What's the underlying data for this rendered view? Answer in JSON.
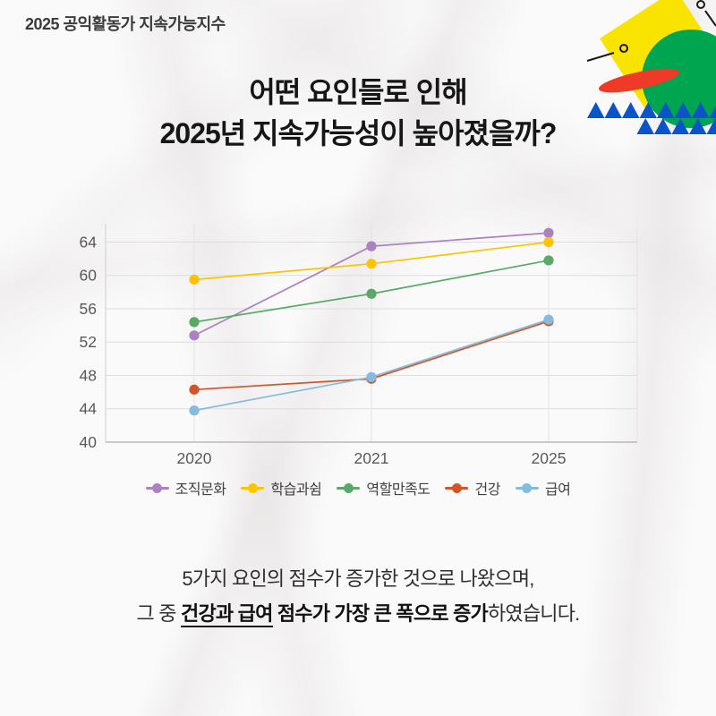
{
  "header": {
    "label": "2025 공익활동가 지속가능지수"
  },
  "title": {
    "line1": "어떤 요인들로 인해",
    "line2": "2025년 지속가능성이 높아졌을까?"
  },
  "footer": {
    "line1": "5가지 요인의 점수가 증가한 것으로 나왔으며,",
    "line2_prefix": "그 중 ",
    "line2_underline_bold": "건강과 급여",
    "line2_bold": " 점수가 가장 큰 폭으로 증가",
    "line2_suffix": "하였습니다."
  },
  "colors": {
    "deco_yellow": "#f9e300",
    "deco_green": "#00a550",
    "deco_red": "#ee3a26",
    "deco_blue": "#0b53c8",
    "pin_black": "#1a1a1a",
    "gridline": "#dedede",
    "axis": "#b9b9b9",
    "tick_text": "#595959"
  },
  "chart_data": {
    "type": "line",
    "categories": [
      "2020",
      "2021",
      "2025"
    ],
    "series": [
      {
        "name": "조직문화",
        "color": "#ab82c0",
        "values": [
          52.8,
          63.5,
          65.1
        ]
      },
      {
        "name": "학습과쉼",
        "color": "#fcc403",
        "values": [
          59.5,
          61.4,
          64.0
        ]
      },
      {
        "name": "역할만족도",
        "color": "#5ba968",
        "values": [
          54.4,
          57.8,
          61.8
        ]
      },
      {
        "name": "건강",
        "color": "#d2542a",
        "values": [
          46.3,
          47.6,
          54.5
        ]
      },
      {
        "name": "급여",
        "color": "#85bcdd",
        "values": [
          43.8,
          47.8,
          54.7
        ]
      }
    ],
    "yticks": [
      40,
      44,
      48,
      52,
      56,
      60,
      64
    ],
    "ylim": [
      40,
      66.2
    ],
    "grid": true,
    "legend_position": "bottom",
    "title": "",
    "xlabel": "",
    "ylabel": ""
  }
}
